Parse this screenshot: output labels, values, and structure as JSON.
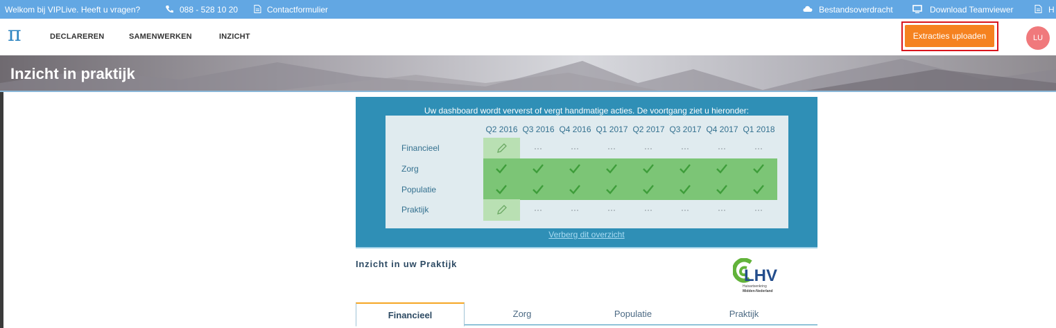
{
  "top_bar": {
    "welcome": "Welkom bij VIPLive. Heeft u vragen?",
    "phone": "088 - 528 10 20",
    "contact": "Contactformulier",
    "transfer": "Bestandsoverdracht",
    "teamviewer": "Download Teamviewer",
    "help": "H"
  },
  "nav": {
    "logo": "π",
    "items": [
      "DECLAREREN",
      "SAMENWERKEN",
      "INZICHT"
    ],
    "button": "Extracties uploaden",
    "avatar": "LU"
  },
  "banner": {
    "title": "Inzicht in praktijk"
  },
  "dashboard": {
    "message": "Uw dashboard wordt ververst of vergt handmatige acties. De voortgang ziet u hieronder:",
    "columns": [
      "Q2 2016",
      "Q3 2016",
      "Q4 2016",
      "Q1 2017",
      "Q2 2017",
      "Q3 2017",
      "Q4 2017",
      "Q1 2018"
    ],
    "rows": [
      {
        "label": "Financieel",
        "cells": [
          "edit",
          "pending",
          "pending",
          "pending",
          "pending",
          "pending",
          "pending",
          "pending"
        ]
      },
      {
        "label": "Zorg",
        "cells": [
          "done",
          "done",
          "done",
          "done",
          "done",
          "done",
          "done",
          "done"
        ]
      },
      {
        "label": "Populatie",
        "cells": [
          "done",
          "done",
          "done",
          "done",
          "done",
          "done",
          "done",
          "done"
        ]
      },
      {
        "label": "Praktijk",
        "cells": [
          "edit",
          "pending",
          "pending",
          "pending",
          "pending",
          "pending",
          "pending",
          "pending"
        ]
      }
    ],
    "hide_link": "Verberg dit overzicht"
  },
  "section": {
    "title": "Inzicht in uw Praktijk",
    "logo": {
      "name": "LHV",
      "line1": "Huisartsenkring",
      "line2": "Midden-Nederland"
    },
    "tabs": [
      "Financieel",
      "Zorg",
      "Populatie",
      "Praktijk"
    ],
    "active_tab": 0
  }
}
